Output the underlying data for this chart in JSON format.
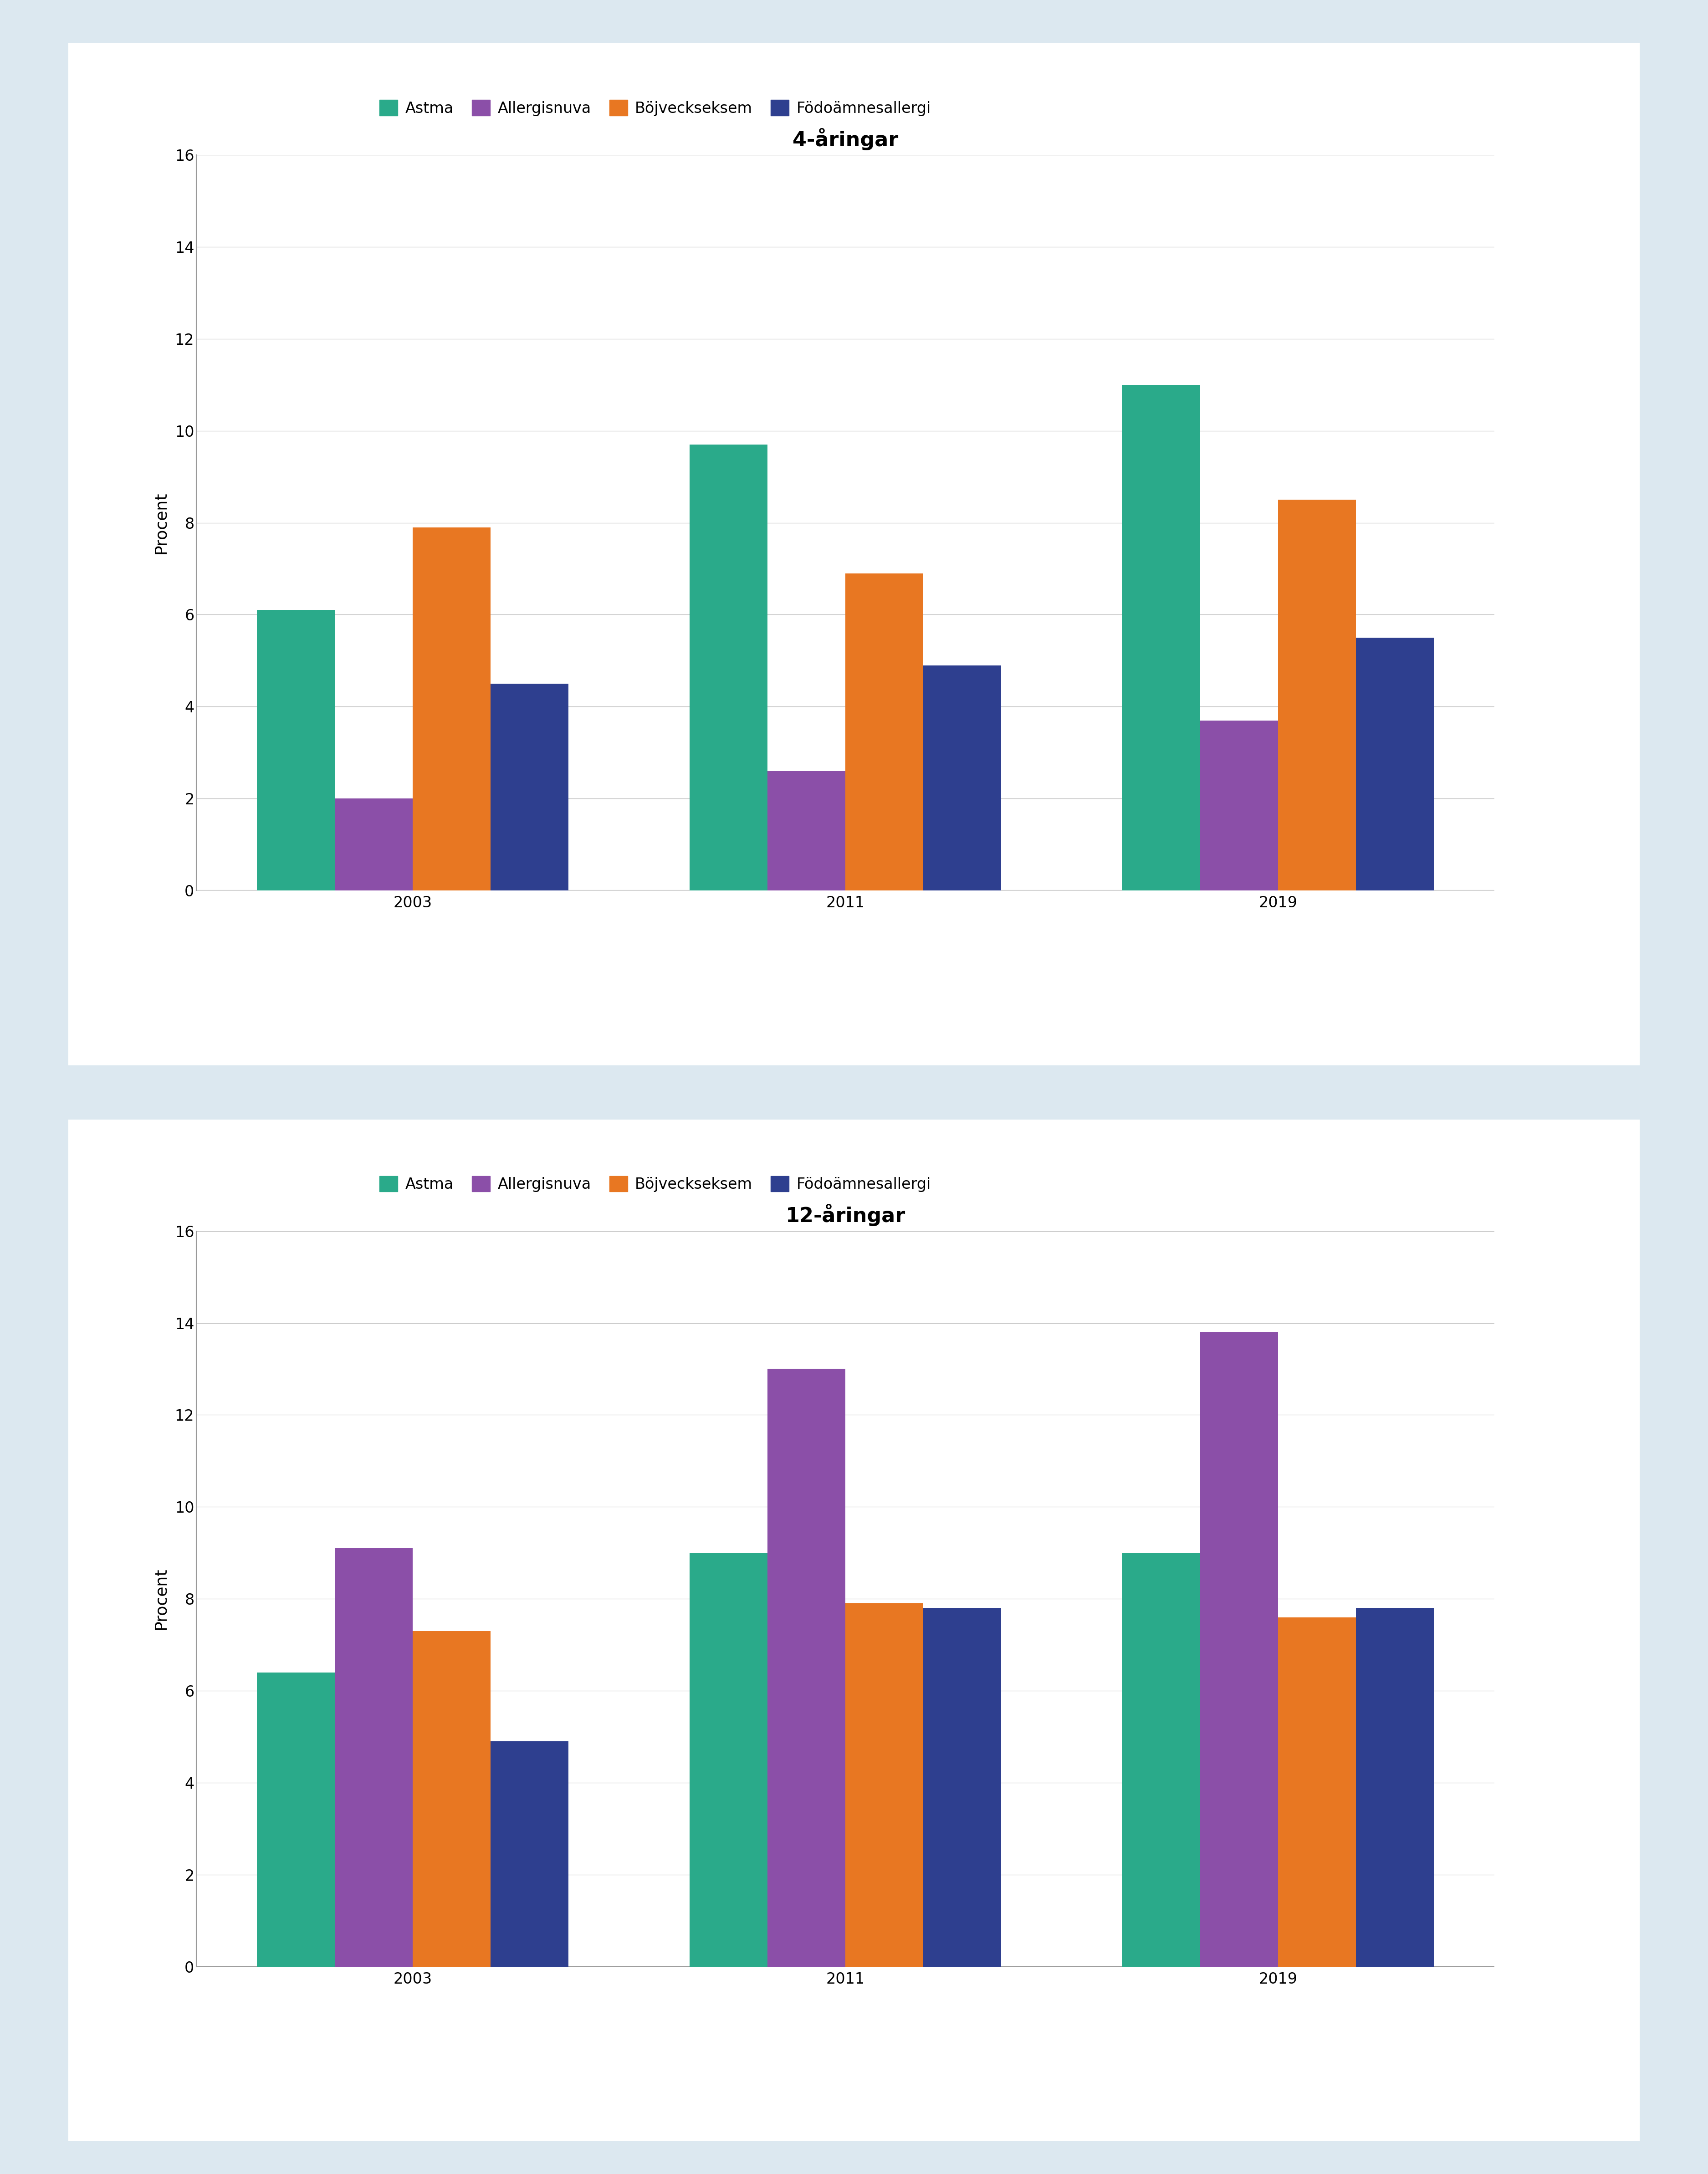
{
  "chart1_title": "4-åringar",
  "chart2_title": "12-åringar",
  "ylabel": "Procent",
  "years": [
    "2003",
    "2011",
    "2019"
  ],
  "legend_labels": [
    "Astma",
    "Allergisnuva",
    "Böjveckseksem",
    "Födoämnesallergi"
  ],
  "colors": [
    "#2aaa8a",
    "#8b4fa8",
    "#e87722",
    "#2e3f8f"
  ],
  "chart1_data": {
    "Astma": [
      6.1,
      9.7,
      11.0
    ],
    "Allergisnuva": [
      2.0,
      2.6,
      3.7
    ],
    "Böjveckseksem": [
      7.9,
      6.9,
      8.5
    ],
    "Födoämnesallergi": [
      4.5,
      4.9,
      5.5
    ]
  },
  "chart2_data": {
    "Astma": [
      6.4,
      9.0,
      9.0
    ],
    "Allergisnuva": [
      9.1,
      13.0,
      13.8
    ],
    "Böjveckseksem": [
      7.3,
      7.9,
      7.6
    ],
    "Födoämnesallergi": [
      4.9,
      7.8,
      7.8
    ]
  },
  "ylim": [
    0,
    16
  ],
  "yticks": [
    0,
    2,
    4,
    6,
    8,
    10,
    12,
    14,
    16
  ],
  "background_color": "#dce8f0",
  "panel_color": "#ffffff",
  "bar_width": 0.18,
  "title_fontsize": 32,
  "label_fontsize": 26,
  "tick_fontsize": 24,
  "legend_fontsize": 24
}
